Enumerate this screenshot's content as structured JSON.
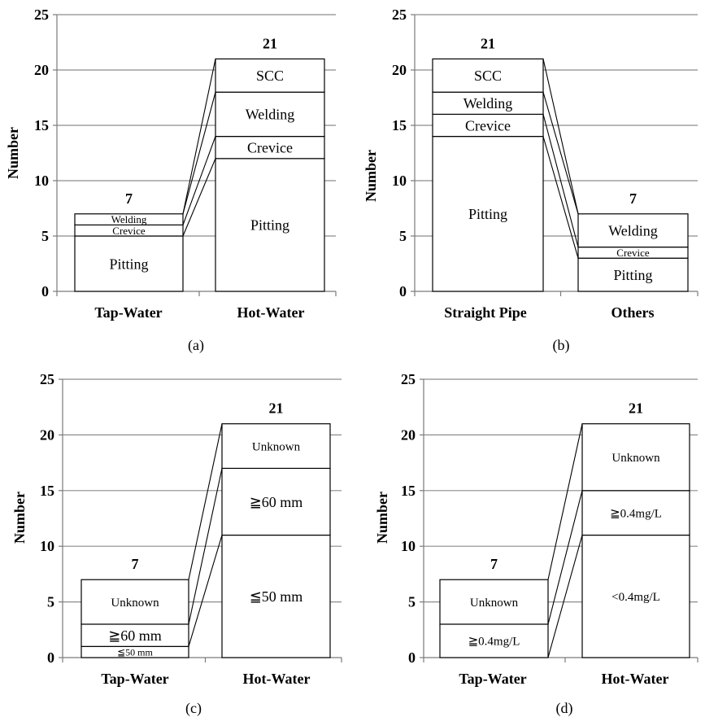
{
  "chart_data": [
    {
      "type": "bar",
      "stacked": true,
      "panel_label": "(a)",
      "ylabel": "Number",
      "ylim": [
        0,
        25
      ],
      "yticks": [
        0,
        5,
        10,
        15,
        20,
        25
      ],
      "grid": true,
      "categories": [
        "Tap-Water",
        "Hot-Water"
      ],
      "totals": [
        "7",
        "21"
      ],
      "series": [
        {
          "name": "Pitting",
          "values": [
            5,
            12
          ]
        },
        {
          "name": "Crevice",
          "values": [
            1,
            2
          ]
        },
        {
          "name": "Welding",
          "values": [
            1,
            4
          ]
        },
        {
          "name": "SCC",
          "values": [
            0,
            3
          ]
        }
      ]
    },
    {
      "type": "bar",
      "stacked": true,
      "panel_label": "(b)",
      "ylabel": "Number",
      "ylim": [
        0,
        25
      ],
      "yticks": [
        0,
        5,
        10,
        15,
        20,
        25
      ],
      "grid": true,
      "categories": [
        "Straight Pipe",
        "Others"
      ],
      "totals": [
        "21",
        "7"
      ],
      "series": [
        {
          "name": "Pitting",
          "values": [
            14,
            3
          ]
        },
        {
          "name": "Crevice",
          "values": [
            2,
            1
          ]
        },
        {
          "name": "Welding",
          "values": [
            2,
            3
          ]
        },
        {
          "name": "SCC",
          "values": [
            3,
            0
          ]
        }
      ]
    },
    {
      "type": "bar",
      "stacked": true,
      "panel_label": "(c)",
      "ylabel": "Number",
      "ylim": [
        0,
        25
      ],
      "yticks": [
        0,
        5,
        10,
        15,
        20,
        25
      ],
      "grid": true,
      "categories": [
        "Tap-Water",
        "Hot-Water"
      ],
      "totals": [
        "7",
        "21"
      ],
      "series": [
        {
          "name": "≦50 mm",
          "values": [
            1,
            11
          ]
        },
        {
          "name": "≧60 mm",
          "values": [
            2,
            6
          ]
        },
        {
          "name": "Unknown",
          "values": [
            4,
            4
          ]
        }
      ]
    },
    {
      "type": "bar",
      "stacked": true,
      "panel_label": "(d)",
      "ylabel": "Number",
      "ylim": [
        0,
        25
      ],
      "yticks": [
        0,
        5,
        10,
        15,
        20,
        25
      ],
      "grid": true,
      "categories": [
        "Tap-Water",
        "Hot-Water"
      ],
      "totals": [
        "7",
        "21"
      ],
      "series": [
        {
          "name": "<0.4mg/L",
          "values": [
            0,
            11
          ]
        },
        {
          "name": "≧0.4mg/L",
          "values": [
            3,
            4
          ]
        },
        {
          "name": "Unknown",
          "values": [
            4,
            6
          ]
        }
      ]
    }
  ]
}
